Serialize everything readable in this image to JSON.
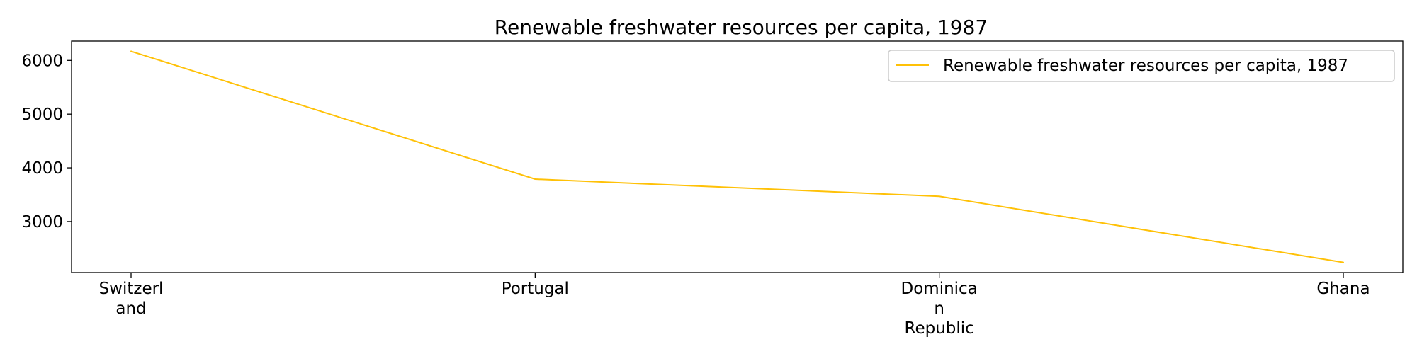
{
  "chart_data": {
    "type": "line",
    "title": "Renewable freshwater resources per capita, 1987",
    "xlabel": "",
    "ylabel": "",
    "categories": [
      "Switzerl\nand",
      "Portugal",
      "Dominica\nn\nRepublic",
      "Ghana"
    ],
    "series": [
      {
        "name": "Renewable freshwater resources per capita, 1987",
        "color": "#ffc107",
        "values": [
          6170,
          3790,
          3470,
          2240
        ]
      }
    ],
    "yticks": [
      3000,
      4000,
      5000,
      6000
    ],
    "ylim": [
      2050,
      6360
    ],
    "grid": false,
    "legend_position": "top-right"
  }
}
